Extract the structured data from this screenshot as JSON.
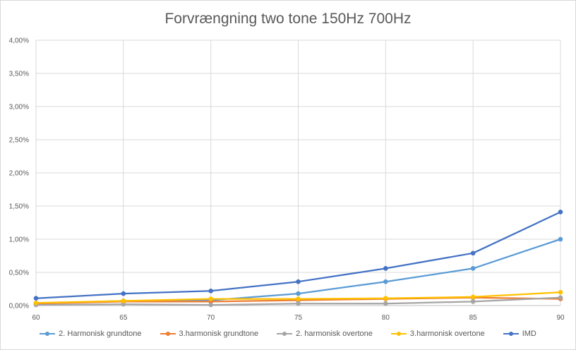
{
  "chart_data": {
    "type": "line",
    "title": "Forvrængning two tone 150Hz 700Hz",
    "x": [
      60,
      65,
      70,
      75,
      80,
      85,
      90
    ],
    "x_tick_labels": [
      "60",
      "65",
      "70",
      "75",
      "80",
      "85",
      "90"
    ],
    "y_tick_labels": [
      "0,00%",
      "0,50%",
      "1,00%",
      "1,50%",
      "2,00%",
      "2,50%",
      "3,00%",
      "3,50%",
      "4,00%"
    ],
    "ylim": [
      0,
      4
    ],
    "xlim": [
      60,
      90
    ],
    "grid": true,
    "legend_position": "bottom",
    "series": [
      {
        "name": "2. Harmonisk grundtone",
        "color": "#5b9bd5",
        "values": [
          0.03,
          0.07,
          0.08,
          0.18,
          0.36,
          0.56,
          1.0
        ]
      },
      {
        "name": "3.harmonisk grundtone",
        "color": "#ed7d31",
        "values": [
          0.03,
          0.06,
          0.06,
          0.08,
          0.1,
          0.12,
          0.1
        ]
      },
      {
        "name": "2. harmonisk  overtone",
        "color": "#a5a5a5",
        "values": [
          0.01,
          0.02,
          0.01,
          0.03,
          0.03,
          0.06,
          0.12
        ]
      },
      {
        "name": "3.harmonisk overtone",
        "color": "#ffc000",
        "values": [
          0.04,
          0.07,
          0.1,
          0.1,
          0.11,
          0.13,
          0.2
        ]
      },
      {
        "name": "IMD",
        "color": "#4472c4",
        "values": [
          0.11,
          0.18,
          0.22,
          0.36,
          0.56,
          0.79,
          1.41
        ]
      }
    ]
  }
}
